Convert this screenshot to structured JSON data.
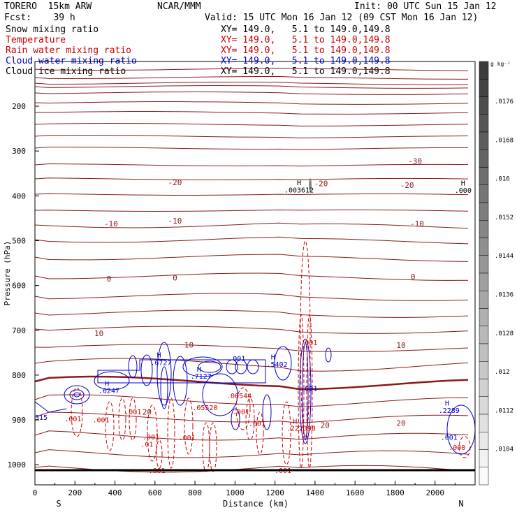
{
  "header": {
    "model": "TORERO  15km ARW",
    "center": "NCAR/MMM",
    "init": "Init: 00 UTC Sun 15 Jan 12",
    "fcst": "Fcst:    39 h",
    "valid": "Valid: 15 UTC Mon 16 Jan 12 (09 CST Mon 16 Jan 12)"
  },
  "legend": [
    {
      "label": "Snow mixing ratio",
      "xy": "XY= 149.0,   5.1 to 149.0,149.8",
      "color": "#000000"
    },
    {
      "label": "Temperature",
      "xy": "XY= 149.0,   5.1 to 149.0,149.8",
      "color": "#cc0000"
    },
    {
      "label": "Rain water mixing ratio",
      "xy": "XY= 149.0,   5.1 to 149.0,149.8",
      "color": "#cc0000"
    },
    {
      "label": "Cloud water mixing ratio",
      "xy": "XY= 149.0,   5.1 to 149.0,149.8",
      "color": "#0000cc"
    },
    {
      "label": "Cloud ice mixing ratio",
      "xy": "XY= 149.0,   5.1 to 149.0,149.8",
      "color": "#000000"
    }
  ],
  "chart_data": {
    "type": "cross-section contour",
    "xlabel": "Distance (km)",
    "ylabel": "Pressure (hPa)",
    "xlim": [
      0,
      2200
    ],
    "ylim": [
      1050,
      100
    ],
    "x_ticks": [
      "0",
      "200",
      "400",
      "600",
      "800",
      "1000",
      "1200",
      "1400",
      "1600",
      "1800",
      "2000"
    ],
    "y_ticks": [
      "200",
      "300",
      "400",
      "500",
      "600",
      "700",
      "800",
      "900",
      "1000"
    ],
    "endpoints": {
      "left": "S",
      "right": "N"
    },
    "temperature_isotherm_labels": [
      {
        "text": "-30",
        "x": 1900,
        "p": 322
      },
      {
        "text": "-20",
        "x": 700,
        "p": 370
      },
      {
        "text": "-20",
        "x": 1430,
        "p": 372
      },
      {
        "text": "-20",
        "x": 1860,
        "p": 376
      },
      {
        "text": "-10",
        "x": 380,
        "p": 462
      },
      {
        "text": "-10",
        "x": 700,
        "p": 456
      },
      {
        "text": "-10",
        "x": 1910,
        "p": 462
      },
      {
        "text": "0",
        "x": 370,
        "p": 585
      },
      {
        "text": "0",
        "x": 700,
        "p": 583
      },
      {
        "text": "0",
        "x": 1890,
        "p": 580
      },
      {
        "text": "10",
        "x": 320,
        "p": 707
      },
      {
        "text": "10",
        "x": 770,
        "p": 732
      },
      {
        "text": "10",
        "x": 1830,
        "p": 733
      },
      {
        "text": "20",
        "x": 560,
        "p": 882
      },
      {
        "text": "20",
        "x": 1450,
        "p": 912
      },
      {
        "text": "20",
        "x": 1830,
        "p": 907
      }
    ],
    "maxima_labels": [
      {
        "text": "H",
        "x": 1320,
        "p": 370,
        "color": "#000000"
      },
      {
        "text": ".003612",
        "x": 1320,
        "p": 386,
        "color": "#000000"
      },
      {
        "text": "H",
        "x": 2140,
        "p": 371,
        "color": "#000000"
      },
      {
        "text": ".000",
        "x": 2140,
        "p": 387,
        "color": "#000000"
      },
      {
        "text": "H",
        "x": 620,
        "p": 754,
        "color": "#0000cc"
      },
      {
        "text": ".6727",
        "x": 630,
        "p": 771,
        "color": "#0000cc"
      },
      {
        "text": "H",
        "x": 820,
        "p": 786,
        "color": "#0000cc"
      },
      {
        "text": ".7127",
        "x": 830,
        "p": 802,
        "color": "#0000cc"
      },
      {
        "text": "H",
        "x": 1190,
        "p": 759,
        "color": "#0000cc"
      },
      {
        "text": ".5402",
        "x": 1210,
        "p": 775,
        "color": "#0000cc"
      },
      {
        "text": "H",
        "x": 360,
        "p": 818,
        "color": "#0000cc"
      },
      {
        "text": ".6247",
        "x": 370,
        "p": 834,
        "color": "#0000cc"
      },
      {
        "text": "H",
        "x": 2060,
        "p": 862,
        "color": "#0000cc"
      },
      {
        "text": ".2289",
        "x": 2070,
        "p": 878,
        "color": "#0000cc"
      },
      {
        "text": ".001",
        "x": 1010,
        "p": 762,
        "color": "#0000cc"
      },
      {
        "text": ".001",
        "x": 1370,
        "p": 829,
        "color": "#0000cc"
      },
      {
        "text": ".001",
        "x": 2070,
        "p": 938,
        "color": "#0000cc"
      },
      {
        "text": "315",
        "x": 0,
        "p": 894,
        "color": "#0000cc"
      },
      {
        "text": ".001",
        "x": 1370,
        "p": 727,
        "color": "#cc0000"
      },
      {
        "text": ".00544",
        "x": 1020,
        "p": 845,
        "color": "#cc0000"
      },
      {
        "text": ".05520",
        "x": 850,
        "p": 872,
        "color": "#cc0000"
      },
      {
        "text": ".001",
        "x": 490,
        "p": 881,
        "color": "#cc0000"
      },
      {
        "text": ".001",
        "x": 1030,
        "p": 881,
        "color": "#cc0000"
      },
      {
        "text": ".001",
        "x": 190,
        "p": 897,
        "color": "#cc0000"
      },
      {
        "text": ".001",
        "x": 330,
        "p": 899,
        "color": "#cc0000"
      },
      {
        "text": ".001",
        "x": 1110,
        "p": 907,
        "color": "#cc0000"
      },
      {
        "text": "H",
        "x": 1300,
        "p": 902,
        "color": "#cc0000"
      },
      {
        "text": ".222398",
        "x": 1330,
        "p": 918,
        "color": "#cc0000"
      },
      {
        "text": ".001",
        "x": 580,
        "p": 937,
        "color": "#cc0000"
      },
      {
        "text": ".001",
        "x": 760,
        "p": 939,
        "color": "#cc0000"
      },
      {
        "text": ".01",
        "x": 560,
        "p": 954,
        "color": "#cc0000"
      },
      {
        "text": ".000",
        "x": 2110,
        "p": 961,
        "color": "#cc0000"
      },
      {
        "text": ".001",
        "x": 610,
        "p": 1012,
        "color": "#cc0000"
      },
      {
        "text": ".001",
        "x": 1240,
        "p": 1012,
        "color": "#cc0000"
      }
    ],
    "snow_units": "g kg⁻¹",
    "snow_colorbar_labels": [
      ".0176",
      ".0168",
      ".016",
      ".0152",
      ".0144",
      ".0136",
      ".0128",
      ".012",
      ".0112",
      ".0104"
    ]
  }
}
